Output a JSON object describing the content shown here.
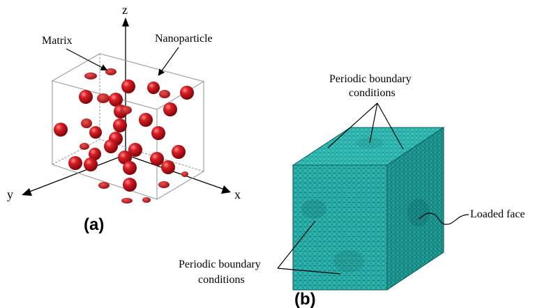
{
  "panel_a": {
    "label": "(a)",
    "axis_z": "z",
    "axis_y": "y",
    "axis_x": "x",
    "label_matrix": "Matrix",
    "label_nanoparticle": "Nanoparticle",
    "particle_color": "#c0141c",
    "box_color": "#9a9a9a"
  },
  "panel_b": {
    "label": "(b)",
    "top_label_line1": "Periodic boundary",
    "top_label_line2": "conditions",
    "side_label_line1": "Periodic boundary",
    "side_label_line2": "conditions",
    "loaded_face_label": "Loaded face",
    "mesh_color": "#2ab3ad"
  }
}
